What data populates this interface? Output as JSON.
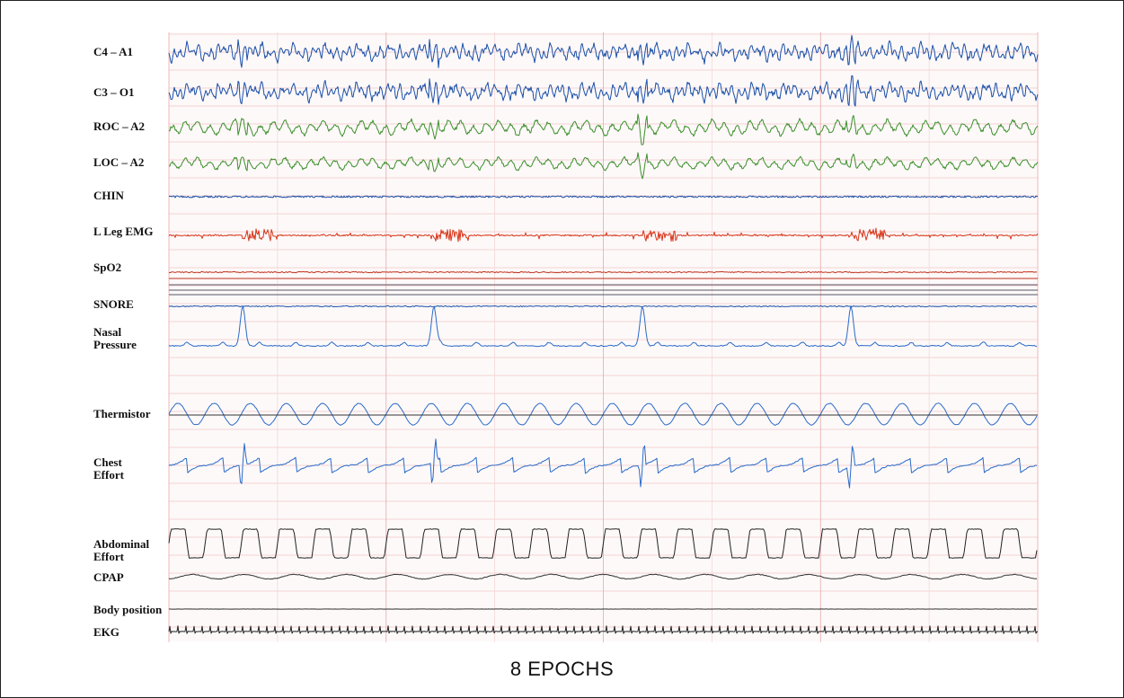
{
  "caption": "8 EPOCHS",
  "chart_data": {
    "type": "line",
    "title": "",
    "xlabel": "8 EPOCHS",
    "epochs": 8,
    "grid": true,
    "channels": [
      {
        "id": "c4a1",
        "label": "C4 – A1",
        "color": "#1a4fa8",
        "kind": "eeg"
      },
      {
        "id": "c3o1",
        "label": "C3 – O1",
        "color": "#1a4fa8",
        "kind": "eeg"
      },
      {
        "id": "roca2",
        "label": "ROC – A2",
        "color": "#3d8f2c",
        "kind": "eog"
      },
      {
        "id": "loca2",
        "label": "LOC – A2",
        "color": "#3d8f2c",
        "kind": "eog"
      },
      {
        "id": "chin",
        "label": "CHIN",
        "color": "#1a4fa8",
        "kind": "emg"
      },
      {
        "id": "lleg",
        "label": "L Leg EMG",
        "color": "#d8361a",
        "kind": "leg"
      },
      {
        "id": "spo2",
        "label": "SpO2",
        "color": "#c0301a",
        "kind": "spo2"
      },
      {
        "id": "snore",
        "label": "SNORE",
        "color": "#1a4fa8",
        "kind": "snore"
      },
      {
        "id": "nasal",
        "label": "Nasal\nPressure",
        "color": "#2a6ac8",
        "kind": "nasal"
      },
      {
        "id": "therm",
        "label": "Thermistor",
        "color": "#2a6ac8",
        "kind": "therm"
      },
      {
        "id": "chest",
        "label": "Chest\nEffort",
        "color": "#2a6ac8",
        "kind": "chest"
      },
      {
        "id": "abd",
        "label": "Abdominal\nEffort",
        "color": "#222222",
        "kind": "abd"
      },
      {
        "id": "cpap",
        "label": "CPAP",
        "color": "#333333",
        "kind": "cpap"
      },
      {
        "id": "bodypos",
        "label": "Body position",
        "color": "#333333",
        "kind": "flat"
      },
      {
        "id": "ekg",
        "label": "EKG",
        "color": "#222222",
        "kind": "ekg"
      }
    ]
  }
}
